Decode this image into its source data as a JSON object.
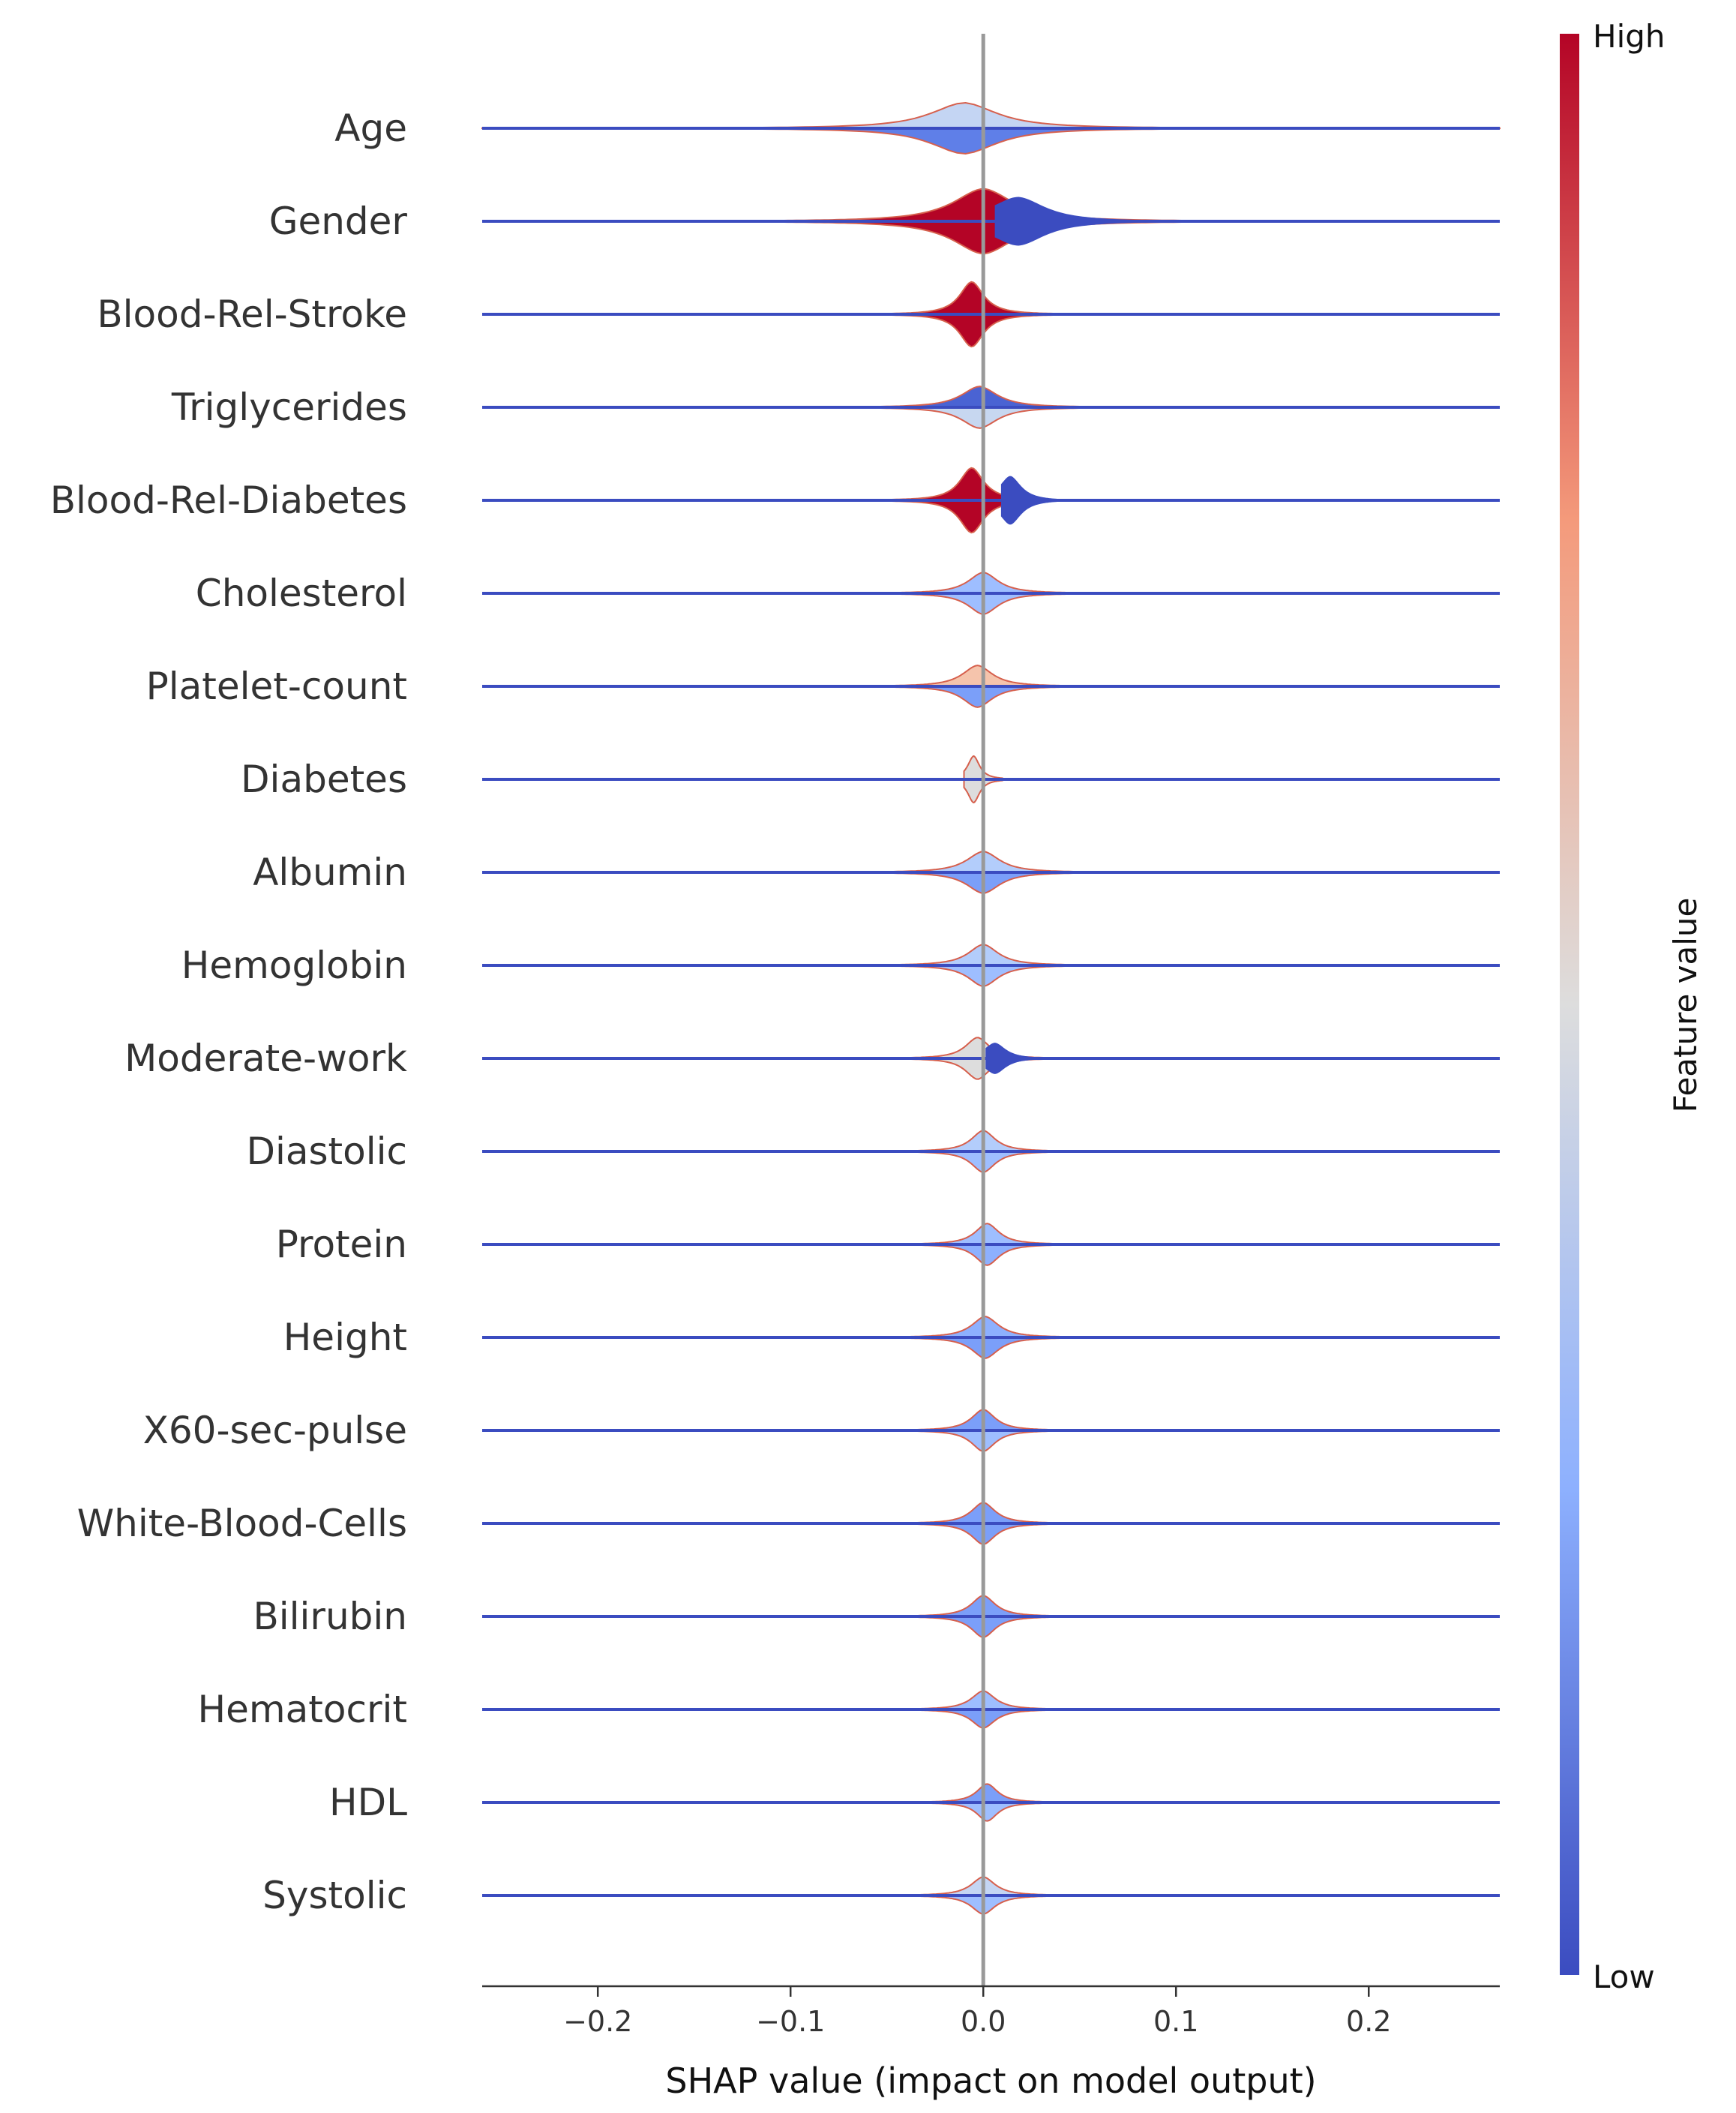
{
  "chart_data": {
    "type": "violin",
    "xlabel": "SHAP value (impact on model output)",
    "xlim": [
      -0.26,
      0.268
    ],
    "xticks": [
      -0.2,
      -0.1,
      0.0,
      0.1,
      0.2
    ],
    "xtick_labels": [
      "−0.2",
      "−0.1",
      "0.0",
      "0.1",
      "0.2"
    ],
    "zero_line": true,
    "colorbar": {
      "label": "Feature value",
      "high_label": "High",
      "low_label": "Low",
      "colors": [
        "#3b4cc0",
        "#8db0fe",
        "#dddddd",
        "#f49a7b",
        "#b40426"
      ]
    },
    "features": [
      {
        "name": "Age",
        "center": -0.01,
        "width": 0.022,
        "half_height": 0.55,
        "up_color": "#c4d5f3",
        "down_color": "#5f7fe8",
        "span": [
          -0.26,
          0.268
        ]
      },
      {
        "name": "Gender",
        "center": 0.0,
        "width": 0.02,
        "half_height": 0.7,
        "up_color": "#b40426",
        "down_color": "#b40426",
        "span": [
          -0.12,
          0.13
        ],
        "split": true,
        "right_color": "#3b4cc0",
        "right_center": 0.018
      },
      {
        "name": "Blood-Rel-Stroke",
        "center": -0.006,
        "width": 0.008,
        "half_height": 0.7,
        "up_color": "#b40426",
        "down_color": "#b40426",
        "span": [
          -0.05,
          0.1
        ]
      },
      {
        "name": "Triglycerides",
        "center": -0.002,
        "width": 0.012,
        "half_height": 0.45,
        "up_color": "#4a63d3",
        "down_color": "#c7d7f0",
        "span": [
          -0.1,
          0.1
        ]
      },
      {
        "name": "Blood-Rel-Diabetes",
        "center": -0.006,
        "width": 0.008,
        "half_height": 0.7,
        "up_color": "#b40426",
        "down_color": "#b40426",
        "span": [
          -0.05,
          0.1
        ],
        "split": true,
        "right_color": "#3b4cc0",
        "right_center": 0.014
      },
      {
        "name": "Cholesterol",
        "center": 0.0,
        "width": 0.01,
        "half_height": 0.45,
        "up_color": "#9ebeff",
        "down_color": "#9ebeff",
        "span": [
          -0.06,
          0.06
        ]
      },
      {
        "name": "Platelet-count",
        "center": -0.003,
        "width": 0.01,
        "half_height": 0.45,
        "up_color": "#f5c4ac",
        "down_color": "#7b9ff9",
        "span": [
          -0.07,
          0.05
        ]
      },
      {
        "name": "Diabetes",
        "center": -0.005,
        "width": 0.004,
        "half_height": 0.5,
        "up_color": "#dddddd",
        "down_color": "#dddddd",
        "span": [
          -0.01,
          0.01
        ]
      },
      {
        "name": "Albumin",
        "center": 0.0,
        "width": 0.011,
        "half_height": 0.45,
        "up_color": "#b3cdfb",
        "down_color": "#7b9ff9",
        "span": [
          -0.07,
          0.07
        ]
      },
      {
        "name": "Hemoglobin",
        "center": 0.0,
        "width": 0.01,
        "half_height": 0.45,
        "up_color": "#b3cdfb",
        "down_color": "#9ebeff",
        "span": [
          -0.08,
          0.05
        ]
      },
      {
        "name": "Moderate-work",
        "center": -0.003,
        "width": 0.008,
        "half_height": 0.45,
        "up_color": "#dddddd",
        "down_color": "#dddddd",
        "span": [
          -0.09,
          0.06
        ],
        "split": true,
        "right_color": "#3b4cc0",
        "right_center": 0.006
      },
      {
        "name": "Diastolic",
        "center": 0.0,
        "width": 0.008,
        "half_height": 0.45,
        "up_color": "#b3cdfb",
        "down_color": "#9ebeff",
        "span": [
          -0.07,
          0.05
        ]
      },
      {
        "name": "Protein",
        "center": 0.002,
        "width": 0.008,
        "half_height": 0.45,
        "up_color": "#9ebeff",
        "down_color": "#8db0fe",
        "span": [
          -0.06,
          0.06
        ]
      },
      {
        "name": "Height",
        "center": 0.001,
        "width": 0.009,
        "half_height": 0.45,
        "up_color": "#8db0fe",
        "down_color": "#7b9ff9",
        "span": [
          -0.06,
          0.05
        ]
      },
      {
        "name": "X60-sec-pulse",
        "center": 0.0,
        "width": 0.008,
        "half_height": 0.45,
        "up_color": "#7b9ff9",
        "down_color": "#9ebeff",
        "span": [
          -0.07,
          0.06
        ]
      },
      {
        "name": "White-Blood-Cells",
        "center": 0.0,
        "width": 0.008,
        "half_height": 0.45,
        "up_color": "#7b9ff9",
        "down_color": "#7b9ff9",
        "span": [
          -0.07,
          0.06
        ]
      },
      {
        "name": "Bilirubin",
        "center": 0.0,
        "width": 0.008,
        "half_height": 0.45,
        "up_color": "#7b9ff9",
        "down_color": "#7b9ff9",
        "span": [
          -0.04,
          0.05
        ]
      },
      {
        "name": "Hematocrit",
        "center": 0.0,
        "width": 0.008,
        "half_height": 0.4,
        "up_color": "#9ebeff",
        "down_color": "#7b9ff9",
        "span": [
          -0.06,
          0.04
        ]
      },
      {
        "name": "HDL",
        "center": 0.002,
        "width": 0.007,
        "half_height": 0.4,
        "up_color": "#7b9ff9",
        "down_color": "#9ebeff",
        "span": [
          -0.06,
          0.05
        ]
      },
      {
        "name": "Systolic",
        "center": 0.0,
        "width": 0.008,
        "half_height": 0.4,
        "up_color": "#c4d5f3",
        "down_color": "#9ebeff",
        "span": [
          -0.04,
          0.04
        ]
      }
    ]
  }
}
